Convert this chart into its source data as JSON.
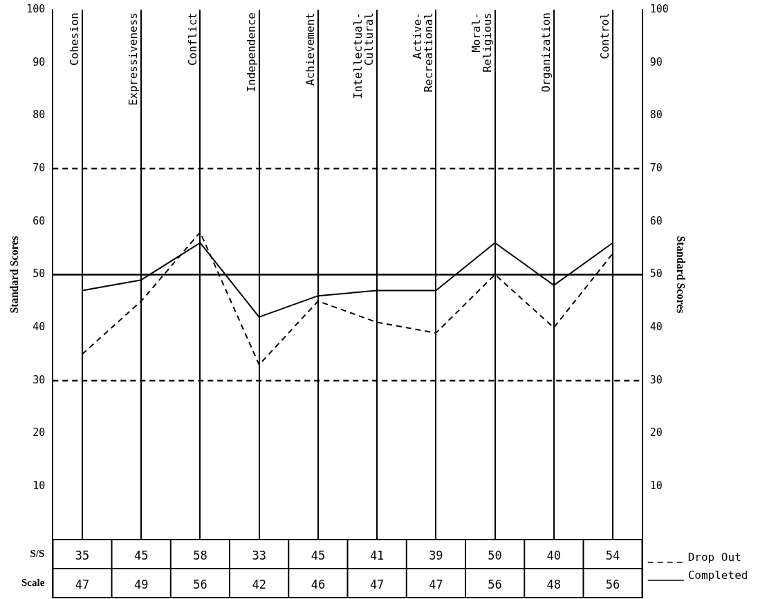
{
  "chart_data": {
    "type": "line",
    "categories": [
      "Cohesion",
      "Expressiveness",
      "Conflict",
      "Independence",
      "Achievement",
      "Intellectual-Cultural",
      "Active-Recreational",
      "Moral-Religious",
      "Organization",
      "Control"
    ],
    "series": [
      {
        "name": "Drop Out",
        "color": "#000000",
        "line_style": "dashed",
        "values": [
          35,
          45,
          58,
          33,
          45,
          41,
          39,
          50,
          40,
          54
        ]
      },
      {
        "name": "Completed",
        "color": "#000000",
        "line_style": "solid",
        "values": [
          47,
          49,
          56,
          42,
          46,
          47,
          47,
          56,
          48,
          56
        ]
      }
    ],
    "ylabel": "Standard Scores",
    "y2label": "Standard Scores",
    "ylim": [
      0,
      100
    ],
    "yticks": [
      10,
      20,
      30,
      40,
      50,
      60,
      70,
      80,
      90,
      100
    ],
    "y2lim": [
      0,
      100
    ],
    "y2ticks": [
      10,
      20,
      30,
      40,
      50,
      60,
      70,
      80,
      90,
      100
    ],
    "ref_lines": [
      {
        "axis": "y",
        "value": 70,
        "line_style": "dashed",
        "color": "#000000"
      },
      {
        "axis": "y",
        "value": 50,
        "line_style": "solid",
        "color": "#000000"
      },
      {
        "axis": "y",
        "value": 30,
        "line_style": "dashed",
        "color": "#000000"
      }
    ],
    "annotations": [
      "S/S",
      "Scale"
    ],
    "data_labels": true,
    "grid": "x",
    "legend": "bottom right",
    "marker": "none"
  }
}
